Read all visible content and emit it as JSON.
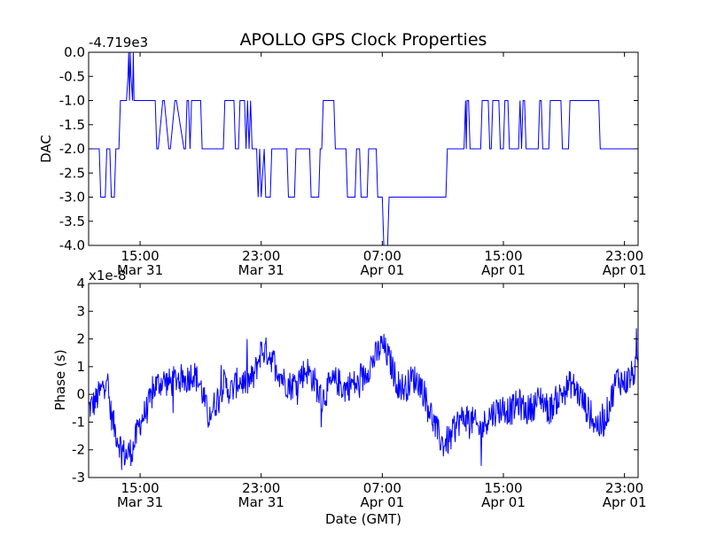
{
  "figure": {
    "title": "APOLLO GPS Clock Properties",
    "line_color": "#0000ff"
  },
  "chart_data": [
    {
      "type": "line",
      "ylabel": "DAC",
      "xlabel": "",
      "y_offset_label": "-4.719e3",
      "ylim": [
        -4.0,
        0.0
      ],
      "yticks": [
        "0.0",
        "-0.5",
        "-1.0",
        "-1.5",
        "-2.0",
        "-2.5",
        "-3.0",
        "-3.5",
        "-4.0"
      ],
      "xlim_hours": [
        11.6,
        47.9
      ],
      "xticks": [
        {
          "hours": 15,
          "time": "15:00",
          "date": "Mar 31"
        },
        {
          "hours": 23,
          "time": "23:00",
          "date": "Mar 31"
        },
        {
          "hours": 31,
          "time": "07:00",
          "date": "Apr 01"
        },
        {
          "hours": 39,
          "time": "15:00",
          "date": "Apr 01"
        },
        {
          "hours": 47,
          "time": "23:00",
          "date": "Apr 01"
        }
      ],
      "series": [
        {
          "x_hours": [
            11.6,
            12.3,
            12.4,
            12.7,
            12.8,
            13.0,
            13.1,
            13.3,
            13.4,
            13.6,
            13.7,
            14.1,
            14.2,
            14.25,
            14.3,
            14.35,
            14.4,
            14.5,
            14.55,
            14.6,
            16.0,
            16.1,
            16.2,
            16.5,
            16.6,
            16.9,
            17.0,
            17.3,
            17.4,
            17.9,
            18.0,
            18.1,
            18.2,
            18.3,
            18.4,
            19.0,
            19.1,
            20.5,
            20.6,
            21.2,
            21.3,
            21.5,
            21.6,
            21.9,
            22.0,
            22.1,
            22.2,
            22.3,
            22.4,
            22.7,
            22.8,
            22.9,
            23.0,
            23.2,
            23.3,
            23.6,
            23.7,
            24.7,
            24.8,
            25.2,
            25.3,
            25.4,
            25.5,
            26.2,
            26.3,
            26.8,
            26.9,
            27.0,
            27.1,
            27.8,
            27.9,
            28.6,
            28.7,
            29.2,
            29.3,
            29.5,
            29.6,
            30.0,
            30.1,
            30.6,
            30.7,
            31.0,
            31.1,
            31.35,
            31.45,
            35.2,
            35.3,
            36.4,
            36.5,
            36.55,
            36.6,
            36.7,
            36.8,
            37.5,
            37.6,
            38.0,
            38.1,
            38.2,
            38.3,
            38.7,
            38.8,
            39.0,
            39.1,
            39.3,
            39.4,
            40.0,
            40.1,
            40.2,
            40.3,
            40.4,
            40.5,
            41.3,
            41.4,
            41.5,
            41.6,
            42.0,
            42.1,
            42.8,
            42.9,
            43.3,
            43.4,
            45.3,
            45.4,
            47.9
          ],
          "values": [
            -2.0,
            -2.0,
            -3.0,
            -3.0,
            -2.0,
            -2.0,
            -3.0,
            -3.0,
            -2.0,
            -2.0,
            -1.0,
            -1.0,
            -0.5,
            0.0,
            -1.0,
            0.0,
            -0.5,
            -1.0,
            0.0,
            -1.0,
            -1.0,
            -2.0,
            -2.0,
            -1.0,
            -1.0,
            -2.0,
            -2.0,
            -1.0,
            -1.0,
            -2.0,
            -2.0,
            -1.0,
            -1.0,
            -2.0,
            -1.0,
            -1.0,
            -2.0,
            -2.0,
            -1.0,
            -1.0,
            -2.0,
            -2.0,
            -1.0,
            -1.0,
            -2.0,
            -1.0,
            -2.0,
            -1.0,
            -2.0,
            -2.0,
            -3.0,
            -2.0,
            -3.0,
            -2.0,
            -3.0,
            -3.0,
            -2.0,
            -2.0,
            -3.0,
            -3.0,
            -2.0,
            -2.0,
            -2.0,
            -2.0,
            -3.0,
            -3.0,
            -2.0,
            -2.0,
            -1.0,
            -1.0,
            -2.0,
            -2.0,
            -3.0,
            -3.0,
            -2.0,
            -2.0,
            -3.0,
            -3.0,
            -2.0,
            -2.0,
            -3.0,
            -3.0,
            -4.0,
            -4.0,
            -3.0,
            -3.0,
            -2.0,
            -2.0,
            -1.0,
            -2.0,
            -1.0,
            -1.0,
            -2.0,
            -2.0,
            -1.0,
            -1.0,
            -2.0,
            -2.0,
            -1.0,
            -1.0,
            -2.0,
            -2.0,
            -1.0,
            -1.0,
            -2.0,
            -2.0,
            -1.0,
            -2.0,
            -1.0,
            -1.0,
            -2.0,
            -2.0,
            -1.0,
            -1.0,
            -2.0,
            -2.0,
            -1.0,
            -1.0,
            -2.0,
            -2.0,
            -1.0,
            -1.0,
            -2.0,
            -2.0
          ]
        }
      ]
    },
    {
      "type": "line",
      "ylabel": "Phase (s)",
      "xlabel": "Date (GMT)",
      "y_offset_label": "x1e-8",
      "ylim": [
        -3,
        4
      ],
      "yticks": [
        "4",
        "3",
        "2",
        "1",
        "0",
        "-1",
        "-2",
        "-3"
      ],
      "xlim_hours": [
        11.6,
        47.9
      ],
      "xticks": [
        {
          "hours": 15,
          "time": "15:00",
          "date": "Mar 31"
        },
        {
          "hours": 23,
          "time": "23:00",
          "date": "Mar 31"
        },
        {
          "hours": 31,
          "time": "07:00",
          "date": "Apr 01"
        },
        {
          "hours": 39,
          "time": "15:00",
          "date": "Apr 01"
        },
        {
          "hours": 47,
          "time": "23:00",
          "date": "Apr 01"
        }
      ],
      "series": [
        {
          "x_hours": [
            11.6,
            12.0,
            12.5,
            12.8,
            13.0,
            13.3,
            13.6,
            14.0,
            14.5,
            15.0,
            15.5,
            16.0,
            16.5,
            17.0,
            17.5,
            18.0,
            18.5,
            19.0,
            19.5,
            20.0,
            20.5,
            21.0,
            21.5,
            22.0,
            22.5,
            23.0,
            23.5,
            24.0,
            24.5,
            25.0,
            25.5,
            26.0,
            26.5,
            27.0,
            27.5,
            28.0,
            28.5,
            29.0,
            29.5,
            30.0,
            30.5,
            31.0,
            31.5,
            32.0,
            32.5,
            33.0,
            33.5,
            34.0,
            34.5,
            35.0,
            35.5,
            36.0,
            36.5,
            37.0,
            37.5,
            38.0,
            38.5,
            39.0,
            39.5,
            40.0,
            40.5,
            41.0,
            41.5,
            42.0,
            42.5,
            43.0,
            43.5,
            44.0,
            44.5,
            45.0,
            45.5,
            46.0,
            46.5,
            47.0,
            47.5,
            47.9
          ],
          "values": [
            -0.5,
            -0.3,
            0.2,
            0.8,
            -0.5,
            -1.2,
            -1.7,
            -2.2,
            -2.0,
            -1.0,
            -0.5,
            0.3,
            0.5,
            0.4,
            0.6,
            0.5,
            0.8,
            0.3,
            -0.8,
            -0.3,
            0.4,
            0.1,
            0.5,
            0.4,
            0.6,
            1.6,
            1.5,
            1.0,
            0.5,
            0.3,
            0.6,
            0.9,
            0.5,
            -0.2,
            0.3,
            0.5,
            0.2,
            0.4,
            0.3,
            0.9,
            1.3,
            1.8,
            1.2,
            0.4,
            0.2,
            0.6,
            0.4,
            -0.3,
            -1.2,
            -1.8,
            -1.6,
            -1.0,
            -0.8,
            -1.0,
            -1.3,
            -0.8,
            -0.6,
            -0.5,
            -0.6,
            -0.3,
            -0.6,
            -0.4,
            -0.1,
            -0.6,
            -0.2,
            0.1,
            0.4,
            0.0,
            -0.5,
            -1.0,
            -1.2,
            -0.4,
            0.6,
            0.4,
            0.7,
            1.0
          ]
        }
      ]
    }
  ]
}
